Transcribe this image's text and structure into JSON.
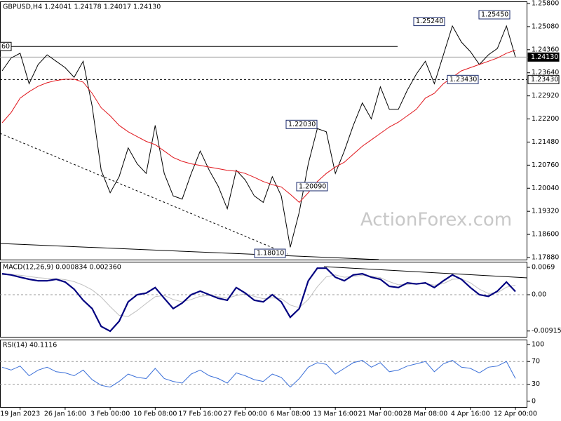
{
  "chart_data": [
    {
      "type": "line",
      "title": "GBPUSD,H4  1.24041 1.24178 1.24017 1.24130",
      "watermark": "ActionForex.com",
      "categories": [
        null,
        null,
        "19 Jan 2023",
        null,
        null,
        null,
        null,
        "26 Jan 16:00",
        null,
        null,
        null,
        null,
        "3 Feb 00:00",
        null,
        null,
        null,
        null,
        "10 Feb 08:00",
        null,
        null,
        null,
        null,
        "17 Feb 16:00",
        null,
        null,
        null,
        null,
        "27 Feb 00:00",
        null,
        null,
        null,
        null,
        "6 Mar 08:00",
        null,
        null,
        null,
        null,
        "13 Mar 16:00",
        null,
        null,
        null,
        null,
        "21 Mar 00:00",
        null,
        null,
        null,
        null,
        "28 Mar 08:00",
        null,
        null,
        null,
        null,
        "4 Apr 16:00",
        null,
        null,
        null,
        null,
        "12 Apr 00:00"
      ],
      "series": [
        {
          "color": "#000000",
          "values": [
            1.237,
            1.241,
            1.2425,
            1.233,
            1.239,
            1.242,
            1.24,
            1.238,
            1.235,
            1.24,
            1.226,
            1.206,
            1.199,
            1.204,
            1.213,
            1.208,
            1.205,
            1.22,
            1.205,
            1.198,
            1.197,
            1.205,
            1.212,
            1.206,
            1.201,
            1.194,
            1.206,
            1.203,
            1.198,
            1.196,
            1.204,
            1.198,
            1.182,
            1.193,
            1.208,
            1.219,
            1.218,
            1.205,
            1.212,
            1.22,
            1.227,
            1.222,
            1.232,
            1.225,
            1.225,
            1.231,
            1.236,
            1.24,
            1.233,
            1.242,
            1.251,
            1.246,
            1.243,
            1.239,
            1.242,
            1.244,
            1.251,
            1.2413
          ]
        },
        {
          "color": "#e0151b",
          "values": [
            1.2208,
            1.224,
            1.2285,
            1.2305,
            1.2322,
            1.2333,
            1.234,
            1.2344,
            1.2344,
            1.2335,
            1.23,
            1.2255,
            1.223,
            1.22,
            1.218,
            1.2165,
            1.215,
            1.214,
            1.212,
            1.21,
            1.2088,
            1.208,
            1.2075,
            1.207,
            1.2065,
            1.206,
            1.2057,
            1.205,
            1.2038,
            1.2025,
            1.2015,
            1.2008,
            1.1985,
            1.196,
            1.199,
            1.2025,
            1.205,
            1.207,
            1.2085,
            1.211,
            1.2135,
            1.2155,
            1.2175,
            1.2195,
            1.221,
            1.223,
            1.225,
            1.2285,
            1.23,
            1.233,
            1.235,
            1.237,
            1.238,
            1.239,
            1.24,
            1.241,
            1.2425,
            1.2435
          ]
        }
      ],
      "ylim": [
        1.17814,
        1.25866
      ],
      "yticks": [
        {
          "value": 1.258,
          "label": "1.25800"
        },
        {
          "value": 1.2508,
          "label": "1.25080"
        },
        {
          "value": 1.2436,
          "label": "1.24360"
        },
        {
          "value": 1.2364,
          "label": "1.23640"
        },
        {
          "value": 1.2292,
          "label": "1.22920"
        },
        {
          "value": 1.222,
          "label": "1.22200"
        },
        {
          "value": 1.2148,
          "label": "1.21480"
        },
        {
          "value": 1.2076,
          "label": "1.20760"
        },
        {
          "value": 1.2004,
          "label": "1.20040"
        },
        {
          "value": 1.1932,
          "label": "1.19320"
        },
        {
          "value": 1.186,
          "label": "1.18600"
        },
        {
          "value": 1.1788,
          "label": "1.17880"
        }
      ],
      "levels": [
        {
          "value": 1.2446,
          "label": "60"
        }
      ],
      "price_markers": [
        {
          "value": 1.2413,
          "label": "1.24130",
          "filled": true
        },
        {
          "value": 1.2343,
          "label": "1.23430",
          "filled": false
        }
      ],
      "annotations": [
        {
          "value": 1.2545,
          "label": "1.25450"
        },
        {
          "value": 1.2524,
          "label": "1.25240"
        },
        {
          "value": 1.2203,
          "label": "1.22030"
        },
        {
          "value": 1.2009,
          "label": "1.20090"
        },
        {
          "value": 1.1801,
          "label": "1.18010"
        },
        {
          "value": 1.2343,
          "label": "1.23430"
        }
      ]
    },
    {
      "type": "line",
      "title": "MACD(12,26,9) 0.000834 0.002360",
      "series": [
        {
          "color": "#c0c0c0",
          "values": [
            0.005,
            0.0051,
            0.0049,
            0.0046,
            0.0043,
            0.0041,
            0.004,
            0.0038,
            0.0033,
            0.0024,
            0.0012,
            -0.0006,
            -0.003,
            -0.0052,
            -0.0055,
            -0.004,
            -0.0022,
            -0.0005,
            -0.0002,
            -0.0012,
            -0.0018,
            -0.0012,
            -0.0004,
            -0.0002,
            -0.0005,
            -0.0009,
            -0.0002,
            0.0002,
            -0.0004,
            -0.001,
            -0.0008,
            -0.001,
            -0.0026,
            -0.0033,
            -0.0012,
            0.002,
            0.0045,
            0.005,
            0.0044,
            0.0046,
            0.0049,
            0.0047,
            0.0043,
            0.0033,
            0.0025,
            0.0026,
            0.0027,
            0.0028,
            0.0024,
            0.0028,
            0.0039,
            0.004,
            0.003,
            0.0014,
            0.0003,
            0.0005,
            0.0019,
            0.0024
          ]
        },
        {
          "color": "#000080",
          "values": [
            0.0053,
            0.005,
            0.0044,
            0.0039,
            0.0035,
            0.0035,
            0.0039,
            0.0032,
            0.0014,
            -0.0014,
            -0.0035,
            -0.008,
            -0.0092,
            -0.0067,
            -0.0018,
            0,
            0.0004,
            0.0018,
            -0.0009,
            -0.0035,
            -0.0021,
            0,
            0.0009,
            0,
            -0.0009,
            -0.0014,
            0.0018,
            0.0004,
            -0.0014,
            -0.0018,
            0,
            -0.0018,
            -0.0057,
            -0.0035,
            0.0035,
            0.0067,
            0.0067,
            0.0044,
            0.0035,
            0.005,
            0.0053,
            0.0044,
            0.0039,
            0.0021,
            0.0018,
            0.003,
            0.0027,
            0.003,
            0.0018,
            0.0035,
            0.005,
            0.0039,
            0.0018,
            0,
            -0.0004,
            0.0009,
            0.0032,
            0.0008
          ]
        }
      ],
      "ylim": [
        -0.01062,
        0.00832
      ],
      "yticks": [
        0.0069,
        {
          "value": 0,
          "label": "0.00"
        },
        -0.009158
      ],
      "reference_lines": [
        0
      ]
    },
    {
      "type": "line",
      "title": "RSI(14) 40.1116",
      "series": [
        {
          "color": "#3a6fd8",
          "values": [
            60,
            55,
            62,
            45,
            55,
            60,
            52,
            50,
            45,
            55,
            38,
            28,
            25,
            35,
            48,
            42,
            40,
            58,
            40,
            35,
            32,
            48,
            55,
            45,
            40,
            32,
            50,
            45,
            38,
            35,
            48,
            42,
            25,
            40,
            60,
            68,
            65,
            48,
            58,
            68,
            72,
            60,
            68,
            52,
            55,
            62,
            66,
            70,
            52,
            66,
            72,
            60,
            58,
            50,
            60,
            62,
            70,
            40.1
          ]
        }
      ],
      "ylim": [
        -10,
        108.6
      ],
      "yticks": [
        100,
        70,
        30,
        0
      ],
      "reference_lines": [
        70,
        30
      ]
    }
  ]
}
